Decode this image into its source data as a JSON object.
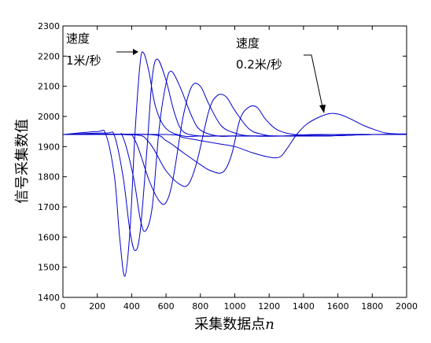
{
  "chart_data": {
    "type": "line",
    "title": "",
    "xlabel": "采集数据点",
    "xlabel_var": "n",
    "ylabel": "信号采集数值",
    "xlim": [
      0,
      2000
    ],
    "ylim": [
      1400,
      2300
    ],
    "xticks": [
      0,
      200,
      400,
      600,
      800,
      1000,
      1200,
      1400,
      1600,
      1800,
      2000
    ],
    "yticks": [
      1400,
      1500,
      1600,
      1700,
      1800,
      1900,
      2000,
      2100,
      2200,
      2300
    ],
    "grid": false,
    "line_color": "#0000cc",
    "baseline": 1940,
    "series": [
      {
        "x": [
          0,
          200,
          250,
          300,
          330,
          360,
          390,
          420,
          450,
          470,
          500,
          540,
          600,
          700,
          800,
          1000,
          1200,
          1500,
          1800,
          2000
        ],
        "y": [
          1940,
          1950,
          1940,
          1800,
          1600,
          1470,
          1620,
          1950,
          2180,
          2210,
          2150,
          2030,
          1960,
          1935,
          1935,
          1935,
          1935,
          1935,
          1940,
          1940
        ]
      },
      {
        "x": [
          0,
          250,
          300,
          350,
          390,
          420,
          450,
          490,
          520,
          550,
          600,
          650,
          700,
          800,
          900,
          1000,
          1200,
          1500,
          1800,
          2000
        ],
        "y": [
          1940,
          1945,
          1935,
          1800,
          1620,
          1555,
          1620,
          1900,
          2130,
          2190,
          2120,
          2010,
          1950,
          1935,
          1935,
          1935,
          1935,
          1935,
          1940,
          1940
        ]
      },
      {
        "x": [
          0,
          300,
          350,
          410,
          450,
          480,
          520,
          560,
          600,
          630,
          680,
          750,
          800,
          900,
          1000,
          1200,
          1500,
          1800,
          2000
        ],
        "y": [
          1940,
          1940,
          1930,
          1800,
          1660,
          1620,
          1700,
          1960,
          2110,
          2150,
          2100,
          2000,
          1955,
          1935,
          1935,
          1935,
          1935,
          1940,
          1940
        ]
      },
      {
        "x": [
          0,
          350,
          420,
          500,
          560,
          600,
          640,
          700,
          750,
          800,
          850,
          920,
          1000,
          1100,
          1300,
          1600,
          2000
        ],
        "y": [
          1940,
          1940,
          1920,
          1790,
          1720,
          1715,
          1790,
          2000,
          2100,
          2100,
          2040,
          1970,
          1945,
          1935,
          1935,
          1940,
          1940
        ]
      },
      {
        "x": [
          0,
          400,
          500,
          600,
          680,
          730,
          780,
          850,
          900,
          950,
          1000,
          1080,
          1150,
          1250,
          1500,
          2000
        ],
        "y": [
          1940,
          1940,
          1915,
          1820,
          1775,
          1775,
          1850,
          2020,
          2070,
          2065,
          2020,
          1960,
          1942,
          1935,
          1940,
          1940
        ]
      },
      {
        "x": [
          0,
          500,
          600,
          700,
          800,
          860,
          930,
          980,
          1030,
          1080,
          1130,
          1180,
          1250,
          1350,
          1500,
          2000
        ],
        "y": [
          1940,
          1940,
          1920,
          1880,
          1840,
          1820,
          1815,
          1870,
          1990,
          2030,
          2030,
          1990,
          1955,
          1940,
          1940,
          1940
        ]
      },
      {
        "x": [
          0,
          600,
          700,
          800,
          900,
          1000,
          1100,
          1200,
          1260,
          1300,
          1360,
          1420,
          1500,
          1560,
          1620,
          1680,
          1750,
          1820,
          1880,
          1950,
          2000
        ],
        "y": [
          1940,
          1940,
          1930,
          1920,
          1910,
          1900,
          1880,
          1865,
          1865,
          1890,
          1940,
          1975,
          2000,
          2010,
          2005,
          1990,
          1970,
          1955,
          1945,
          1942,
          1942
        ]
      }
    ],
    "annotations": [
      {
        "line1": "速度",
        "line2": "1米/秒"
      },
      {
        "line1": "速度",
        "line2": "0.2米/秒"
      }
    ]
  }
}
